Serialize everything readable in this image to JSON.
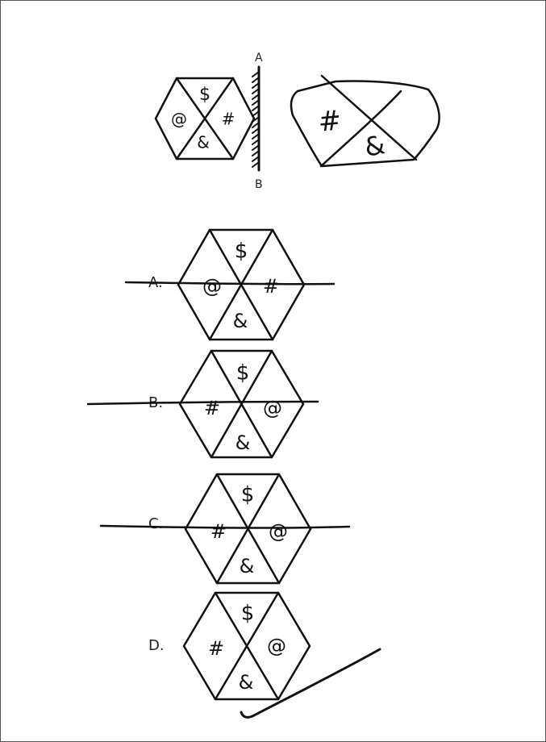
{
  "mirror": {
    "top_label": "A",
    "bottom_label": "B"
  },
  "original": {
    "top": "$",
    "left": "@",
    "right": "#",
    "bottom": "&"
  },
  "sketch": {
    "left": "#",
    "bottom": "&"
  },
  "options": [
    {
      "label": "A.",
      "top": "$",
      "left": "@",
      "right": "#",
      "bottom": "&"
    },
    {
      "label": "B.",
      "top": "$",
      "left": "#",
      "right": "@",
      "bottom": "&"
    },
    {
      "label": "C.",
      "top": "$",
      "left": "#",
      "right": "@",
      "bottom": "&"
    },
    {
      "label": "D.",
      "top": "$",
      "left": "#",
      "right": "@",
      "bottom": "&"
    }
  ]
}
